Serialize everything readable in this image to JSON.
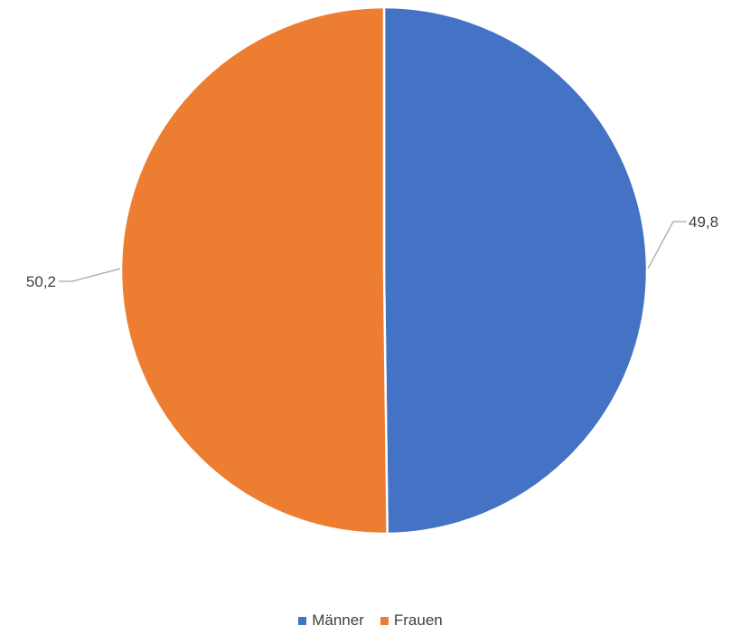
{
  "chart_data": {
    "type": "pie",
    "series": [
      {
        "name": "Männer",
        "value": 49.8,
        "label": "49,8",
        "color": "#4472C4"
      },
      {
        "name": "Frauen",
        "value": 50.2,
        "label": "50,2",
        "color": "#ED7D31"
      }
    ],
    "start_angle_deg": 0,
    "direction": "clockwise",
    "legend_position": "bottom",
    "leader_line_color": "#A6A6A6"
  }
}
